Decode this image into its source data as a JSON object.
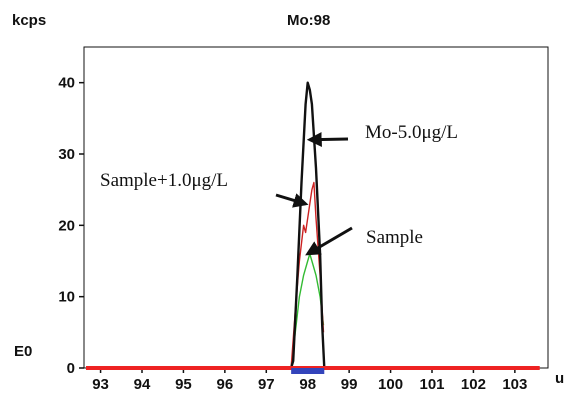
{
  "chart_data": {
    "type": "line",
    "title": "Mo:98",
    "ylabel": "kcps",
    "xlabel": "u",
    "baseline_label": "E0",
    "xlim": [
      92.6,
      103.8
    ],
    "ylim": [
      0,
      45
    ],
    "x_ticks": [
      "93",
      "94",
      "95",
      "96",
      "97",
      "98",
      "99",
      "100",
      "101",
      "102",
      "103"
    ],
    "y_ticks": [
      "0",
      "10",
      "20",
      "30",
      "40"
    ],
    "grid": false,
    "series": [
      {
        "name": "Mo-5.0μg/L",
        "color": "#111111",
        "x": [
          97.5,
          97.6,
          97.65,
          97.75,
          97.85,
          97.95,
          98.0,
          98.05,
          98.1,
          98.2,
          98.3,
          98.35,
          98.4,
          98.45
        ],
        "y": [
          0,
          0,
          1,
          13,
          26,
          37,
          40,
          39,
          37,
          28,
          16,
          6,
          0,
          0
        ]
      },
      {
        "name": "Sample+1.0μg/L",
        "color": "#cc2222",
        "x": [
          97.6,
          97.7,
          97.8,
          97.9,
          97.95,
          98.0,
          98.05,
          98.1,
          98.15,
          98.2,
          98.3,
          98.38
        ],
        "y": [
          0,
          8,
          15,
          20,
          19,
          21,
          23,
          25,
          26,
          21,
          13,
          5
        ]
      },
      {
        "name": "Sample",
        "color": "#33bb33",
        "x": [
          97.6,
          97.7,
          97.8,
          97.9,
          98.0,
          98.05,
          98.1,
          98.2,
          98.3,
          98.38
        ],
        "y": [
          0,
          5,
          10,
          13,
          15,
          16,
          15,
          13,
          10,
          6
        ]
      }
    ],
    "annotations": [
      {
        "text": "Mo-5.0μg/L",
        "arrow_to": [
          98.05,
          32
        ]
      },
      {
        "text": "Sample+1.0μg/L",
        "arrow_to": [
          97.95,
          23
        ]
      },
      {
        "text": "Sample",
        "arrow_to": [
          98.0,
          16
        ]
      }
    ],
    "baseline": {
      "color": "#ee2222",
      "y": 0
    },
    "peak_range": {
      "color": "#3344bb",
      "x": [
        97.6,
        98.4
      ]
    }
  }
}
